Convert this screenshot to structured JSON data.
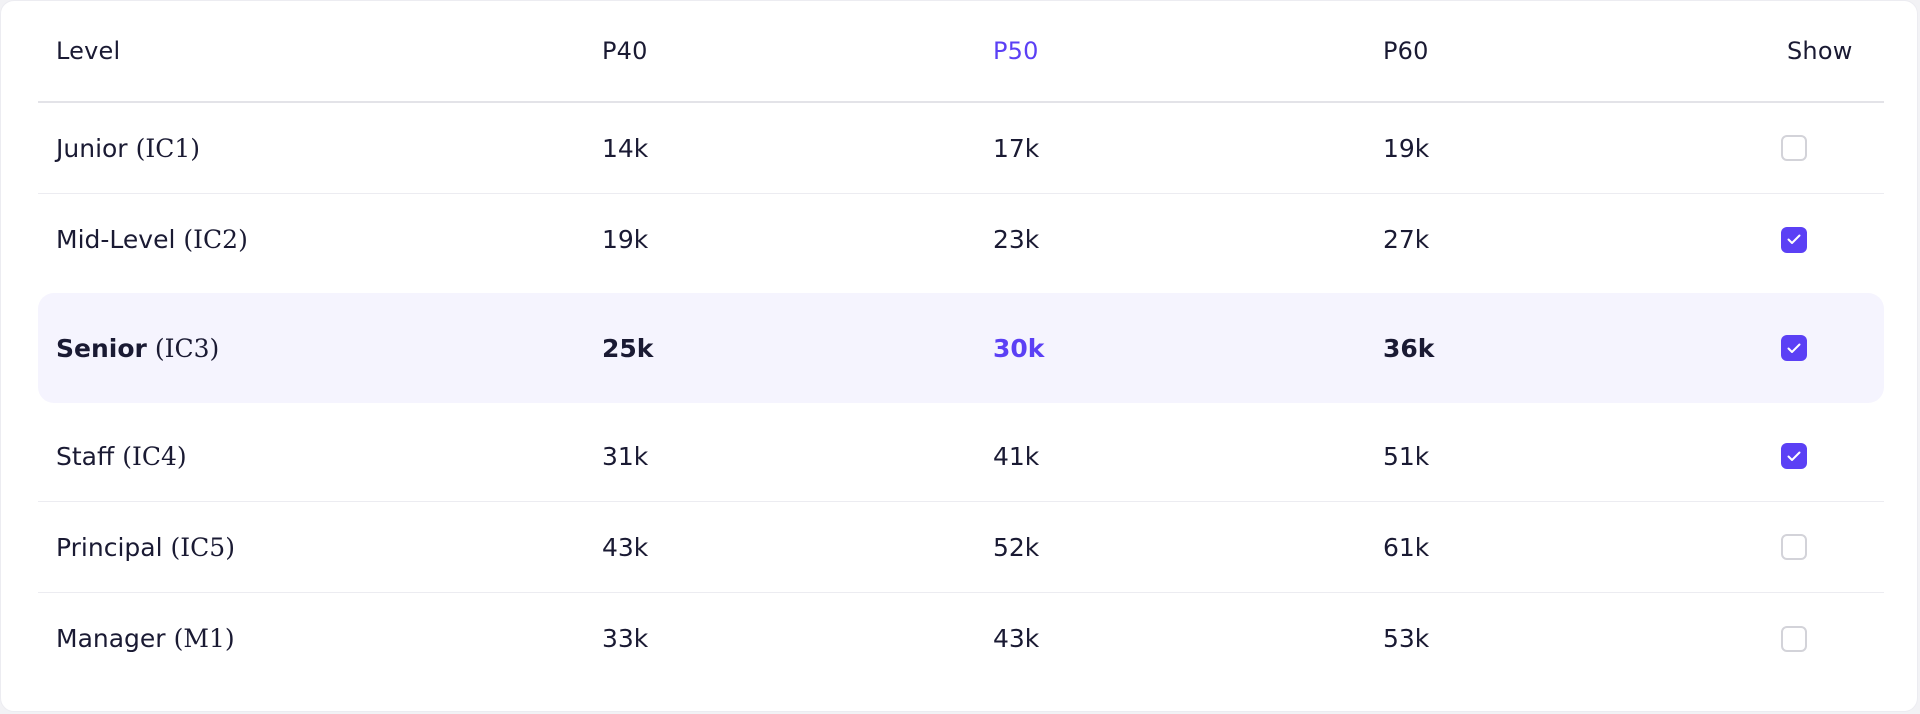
{
  "table": {
    "headers": {
      "level": "Level",
      "p40": "P40",
      "p50": "P50",
      "p60": "P60",
      "show": "Show"
    },
    "rows": [
      {
        "name": "Junior",
        "code": "(IC1)",
        "p40": "14k",
        "p50": "17k",
        "p60": "19k",
        "show": false,
        "highlighted": false
      },
      {
        "name": "Mid-Level",
        "code": "(IC2)",
        "p40": "19k",
        "p50": "23k",
        "p60": "27k",
        "show": true,
        "highlighted": false
      },
      {
        "name": "Senior",
        "code": "(IC3)",
        "p40": "25k",
        "p50": "30k",
        "p60": "36k",
        "show": true,
        "highlighted": true
      },
      {
        "name": "Staff",
        "code": "(IC4)",
        "p40": "31k",
        "p50": "41k",
        "p60": "51k",
        "show": true,
        "highlighted": false
      },
      {
        "name": "Principal",
        "code": "(IC5)",
        "p40": "43k",
        "p50": "52k",
        "p60": "61k",
        "show": false,
        "highlighted": false
      },
      {
        "name": "Manager",
        "code": "(M1)",
        "p40": "33k",
        "p50": "43k",
        "p60": "53k",
        "show": false,
        "highlighted": false
      }
    ]
  },
  "colors": {
    "accent": "#5b40f5",
    "highlight_row": "#f5f4fe",
    "text": "#1a1a33",
    "checkbox_border": "#d3d3d9"
  },
  "icons": {
    "checkbox_checked": "checkmark-icon"
  }
}
